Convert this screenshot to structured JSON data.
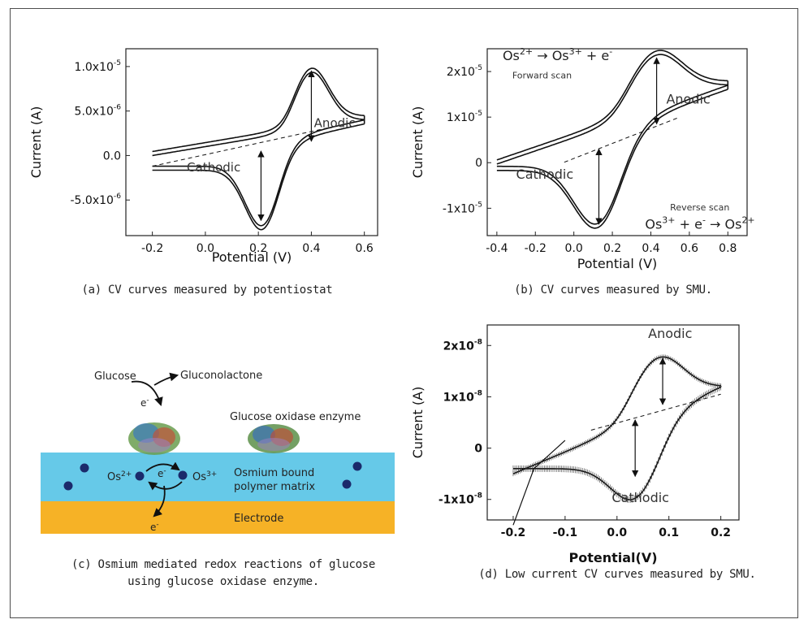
{
  "figure": {
    "captions": {
      "a": "(a) CV curves measured by potentiostat",
      "b": "(b) CV curves measured by SMU.",
      "c_line1": "(c) Osmium mediated redox reactions of glucose",
      "c_line2": "using glucose oxidase enzyme.",
      "d": "(d) Low current CV curves measured by SMU."
    }
  },
  "diagram": {
    "glucose": "Glucose",
    "gluconolactone": "Gluconolactone",
    "electron": "e",
    "electron_sup": "-",
    "enzyme": "Glucose oxidase enzyme",
    "os2": "Os",
    "os2_sup": "2+",
    "os3": "Os",
    "os3_sup": "3+",
    "matrix_line1": "Osmium bound",
    "matrix_line2": "polymer matrix",
    "electrode": "Electrode",
    "colors": {
      "matrix": "#66c9e8",
      "electrode": "#f6b226",
      "dot": "#1b2a6b"
    }
  },
  "chart_data": [
    {
      "id": "a",
      "type": "line",
      "xlabel": "Potential (V)",
      "ylabel": "Current (A)",
      "xlim": [
        -0.3,
        0.65
      ],
      "ylim": [
        -9e-06,
        1.2e-05
      ],
      "xticks": [
        -0.2,
        0.0,
        0.2,
        0.4,
        0.6
      ],
      "xtick_labels": [
        "-0.2",
        "0.0",
        "0.2",
        "0.4",
        "0.6"
      ],
      "yticks": [
        1e-05,
        5e-06,
        0,
        -5e-06
      ],
      "ytick_labels": [
        {
          "base": "1.0x10",
          "exp": "-5"
        },
        {
          "base": "5.0x10",
          "exp": "-6"
        },
        {
          "base": "0.0",
          "exp": ""
        },
        {
          "base": "-5.0x10",
          "exp": "-6"
        }
      ],
      "annotations": {
        "anodic": "Anodic",
        "cathodic": "Cathodic"
      },
      "params": {
        "xmin": -0.2,
        "xmax": 0.6,
        "Ea": 0.4,
        "Ec": 0.22,
        "ipa": 9.5e-06,
        "ipc": 7.3e-06,
        "w": 0.075,
        "base0": -1.2e-06,
        "base1": 4e-06,
        "fwd0": 0.0,
        "offset": 4.5e-07
      },
      "series": [
        {
          "role": "forward",
          "points": [
            [
              -0.2,
              0.0
            ],
            [
              0.0,
              2e-07
            ],
            [
              0.2,
              8e-07
            ],
            [
              0.3,
              3.5e-06
            ],
            [
              0.4,
              9.5e-06
            ],
            [
              0.5,
              5.5e-06
            ],
            [
              0.6,
              4e-06
            ]
          ]
        },
        {
          "role": "reverse",
          "points": [
            [
              0.6,
              4e-06
            ],
            [
              0.5,
              1.5e-06
            ],
            [
              0.3,
              -3e-06
            ],
            [
              0.22,
              -7.3e-06
            ],
            [
              0.1,
              -4e-06
            ],
            [
              0.0,
              -2e-06
            ],
            [
              -0.2,
              -1.2e-06
            ]
          ]
        }
      ],
      "baseline": [
        [
          -0.2,
          -1.2e-06
        ],
        [
          0.6,
          4e-06
        ]
      ],
      "markers": {
        "anodic_x": 0.4,
        "anodic_y": [
          1.6e-06,
          9.5e-06
        ],
        "cathodic_x": 0.21,
        "cathodic_y": [
          5e-07,
          -7.3e-06
        ]
      }
    },
    {
      "id": "b",
      "type": "line",
      "xlabel": "Potential (V)",
      "ylabel": "Current (A)",
      "xlim": [
        -0.45,
        0.9
      ],
      "ylim": [
        -1.6e-05,
        2.5e-05
      ],
      "xticks": [
        -0.4,
        -0.2,
        0.0,
        0.2,
        0.4,
        0.6,
        0.8
      ],
      "xtick_labels": [
        "-0.4",
        "-0.2",
        "0.0",
        "0.2",
        "0.4",
        "0.6",
        "0.8"
      ],
      "yticks": [
        2e-05,
        1e-05,
        0,
        -1e-05
      ],
      "ytick_labels": [
        {
          "base": "2x10",
          "exp": "-5"
        },
        {
          "base": "1x10",
          "exp": "-5"
        },
        {
          "base": "0",
          "exp": ""
        },
        {
          "base": "-1x10",
          "exp": "-5"
        }
      ],
      "annotations": {
        "anodic": "Anodic",
        "cathodic": "Cathodic",
        "forward_scan": "Forward scan",
        "reverse_scan": "Reverse scan"
      },
      "reactions": {
        "forward": {
          "os_a": "Os",
          "sup_a": "2+",
          "os_b": "Os",
          "sup_b": "3+",
          "tail": "+ e",
          "tail_sup": "-"
        },
        "reverse": {
          "os_a": "Os",
          "sup_a": "3+",
          "mid": "+ e",
          "mid_sup": "-",
          "os_b": "Os",
          "sup_b": "2+"
        }
      },
      "params": {
        "xmin": -0.4,
        "xmax": 0.8,
        "Ea": 0.44,
        "Ec": 0.13,
        "ipa": 2.4e-05,
        "ipc": 1.4e-05,
        "w": 0.14,
        "base0": -8e-07,
        "base1": 1.7e-05,
        "fwd0": -3e-07,
        "offset": 9e-07
      },
      "series": [
        {
          "role": "forward",
          "points": [
            [
              -0.4,
              -3e-07
            ],
            [
              0.0,
              5e-07
            ],
            [
              0.2,
              1.5e-05
            ],
            [
              0.44,
              2.4e-05
            ],
            [
              0.7,
              1.9e-05
            ],
            [
              0.8,
              1.7e-05
            ]
          ]
        },
        {
          "role": "reverse",
          "points": [
            [
              0.8,
              1.7e-05
            ],
            [
              0.5,
              8e-06
            ],
            [
              0.3,
              -5e-06
            ],
            [
              0.13,
              -1.4e-05
            ],
            [
              0.0,
              -9e-06
            ],
            [
              -0.4,
              -4e-06
            ]
          ]
        }
      ],
      "baseline": [
        [
          -0.05,
          1e-07
        ],
        [
          0.55,
          1e-05
        ]
      ],
      "markers": {
        "anodic_x": 0.43,
        "anodic_y": [
          8.5e-06,
          2.3e-05
        ],
        "cathodic_x": 0.13,
        "cathodic_y": [
          3e-06,
          -1.35e-05
        ]
      }
    },
    {
      "id": "d",
      "type": "line",
      "xlabel": "Potential(V)",
      "ylabel": "Current (A)",
      "xlim": [
        -0.25,
        0.235
      ],
      "ylim": [
        -1.4e-08,
        2.4e-08
      ],
      "xticks": [
        -0.2,
        -0.1,
        0.0,
        0.1,
        0.2
      ],
      "xtick_labels": [
        "-0.2",
        "-0.1",
        "0.0",
        "0.1",
        "0.2"
      ],
      "yticks": [
        2e-08,
        1e-08,
        0,
        -1e-08
      ],
      "ytick_labels": [
        {
          "base": "2x10",
          "exp": "-8"
        },
        {
          "base": "1x10",
          "exp": "-8"
        },
        {
          "base": "0",
          "exp": ""
        },
        {
          "base": "-1x10",
          "exp": "-8"
        }
      ],
      "annotations": {
        "anodic": "Anodic",
        "cathodic": "Cathodic"
      },
      "params": {
        "xmin": -0.2,
        "xmax": 0.2,
        "Ea": 0.085,
        "Ec": 0.035,
        "ipa": 1.8e-08,
        "ipc": 7e-09,
        "w": 0.05,
        "base0": -4e-09,
        "base1": 1.2e-08,
        "fwd0": -5e-09,
        "offset": 0.0
      },
      "series": [
        {
          "role": "forward",
          "points": [
            [
              -0.2,
              -5e-09
            ],
            [
              -0.1,
              2e-09
            ],
            [
              0.0,
              8e-09
            ],
            [
              0.085,
              1.8e-08
            ],
            [
              0.15,
              1.4e-08
            ],
            [
              0.2,
              1.2e-08
            ]
          ]
        },
        {
          "role": "reverse",
          "points": [
            [
              0.2,
              1.2e-08
            ],
            [
              0.1,
              -2e-09
            ],
            [
              0.035,
              -7e-09
            ],
            [
              -0.1,
              -4e-09
            ],
            [
              -0.2,
              -4e-09
            ]
          ]
        },
        {
          "role": "tail",
          "points": [
            [
              -0.2,
              -1.5e-08
            ],
            [
              -0.16,
              -4e-09
            ],
            [
              -0.1,
              1.5e-09
            ]
          ]
        }
      ],
      "baseline": [
        [
          -0.05,
          3.5e-09
        ],
        [
          0.2,
          1.05e-08
        ]
      ],
      "markers": {
        "anodic_x": 0.088,
        "anodic_y": [
          8.5e-09,
          1.75e-08
        ],
        "cathodic_x": 0.035,
        "cathodic_y": [
          5.5e-09,
          -5.5e-09
        ]
      }
    }
  ]
}
